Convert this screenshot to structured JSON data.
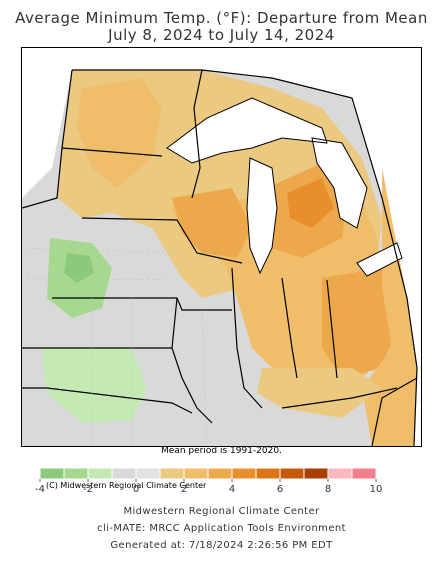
{
  "title_line1": "Average Minimum Temp. (°F): Departure from Mean",
  "title_line2": "July 8, 2024 to July 14, 2024",
  "copyright": "(C) Midwestern Regional Climate Center",
  "mean_period": "Mean period is 1991-2020.",
  "legend": {
    "colors": [
      "#8cc97a",
      "#a6d98f",
      "#c4eab4",
      "#d9d9d9",
      "#e2e2e2",
      "#ecc980",
      "#f0bd6a",
      "#eda84c",
      "#e88f2c",
      "#dc7515",
      "#c65a0c",
      "#a94008",
      "#fbb8bf",
      "#f0808a"
    ],
    "tick_labels": [
      "-4",
      "-2",
      "0",
      "2",
      "4",
      "6",
      "8",
      "10"
    ]
  },
  "footer": {
    "line1": "Midwestern Regional Climate Center",
    "line2": "cli-MATE: MRCC Application Tools Environment",
    "line3": "Generated at: 7/18/2024 2:26:56 PM EDT"
  }
}
